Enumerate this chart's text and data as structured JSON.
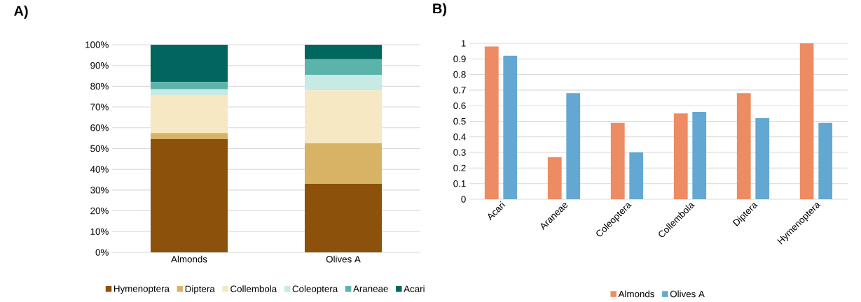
{
  "chart_data": [
    {
      "type": "bar",
      "title": "A)",
      "stacked": true,
      "grid": "y",
      "legend": "bottom",
      "categories": [
        "Almonds",
        "Olives A"
      ],
      "ylim": [
        0,
        100
      ],
      "yticks": [
        {
          "value": 0,
          "label": "0%"
        },
        {
          "value": 10,
          "label": "10%"
        },
        {
          "value": 20,
          "label": "20%"
        },
        {
          "value": 30,
          "label": "30%"
        },
        {
          "value": 40,
          "label": "40%"
        },
        {
          "value": 50,
          "label": "50%"
        },
        {
          "value": 60,
          "label": "60%"
        },
        {
          "value": 70,
          "label": "70%"
        },
        {
          "value": 80,
          "label": "80%"
        },
        {
          "value": 90,
          "label": "90%"
        },
        {
          "value": 100,
          "label": "100%"
        }
      ],
      "series": [
        {
          "name": "Hymenoptera",
          "color": "#8c510a",
          "values": [
            54.5,
            33
          ]
        },
        {
          "name": "Diptera",
          "color": "#d8b365",
          "values": [
            3,
            19.5
          ]
        },
        {
          "name": "Collembola",
          "color": "#f6e8c3",
          "values": [
            18,
            25.5
          ]
        },
        {
          "name": "Coleoptera",
          "color": "#c7eae5",
          "values": [
            3,
            7.5
          ]
        },
        {
          "name": "Araneae",
          "color": "#5ab4ac",
          "values": [
            3.5,
            7.5
          ]
        },
        {
          "name": "Acari",
          "color": "#01665e",
          "values": [
            18,
            7
          ]
        }
      ]
    },
    {
      "type": "bar",
      "title": "B)",
      "grid": "y",
      "legend": "bottom",
      "categories": [
        "Acari",
        "Araneae",
        "Coleoptera",
        "Collembola",
        "Diptera",
        "Hymenoptera"
      ],
      "ylim": [
        0,
        1
      ],
      "yticks": [
        0,
        0.1,
        0.2,
        0.3,
        0.4,
        0.5,
        0.6,
        0.7,
        0.8,
        0.9,
        1
      ],
      "series": [
        {
          "name": "Almonds",
          "color": "#ed8b63",
          "values": [
            0.98,
            0.27,
            0.49,
            0.55,
            0.68,
            1.0
          ]
        },
        {
          "name": "Olives A",
          "color": "#63a8d2",
          "values": [
            0.92,
            0.68,
            0.3,
            0.56,
            0.52,
            0.49
          ]
        }
      ]
    }
  ]
}
